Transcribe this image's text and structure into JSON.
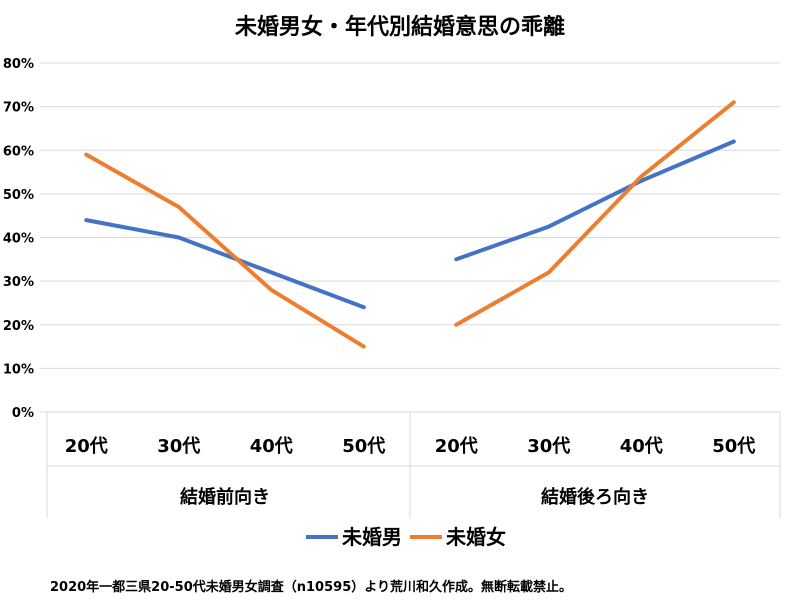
{
  "chart_data": {
    "type": "line",
    "title": "未婚男女・年代別結婚意思の乖離",
    "ylim": [
      0,
      0.8
    ],
    "yticks": [
      "0%",
      "10%",
      "20%",
      "30%",
      "40%",
      "50%",
      "60%",
      "70%",
      "80%"
    ],
    "grid": true,
    "legend_position": "bottom",
    "groups": [
      {
        "label": "結婚前向き",
        "categories": [
          "20代",
          "30代",
          "40代",
          "50代"
        ]
      },
      {
        "label": "結婚後ろ向き",
        "categories": [
          "20代",
          "30代",
          "40代",
          "50代"
        ]
      }
    ],
    "series": [
      {
        "name": "未婚男",
        "color": "#4472C4",
        "values": [
          [
            0.44,
            0.4,
            0.32,
            0.24
          ],
          [
            0.35,
            0.425,
            0.53,
            0.62
          ]
        ]
      },
      {
        "name": "未婚女",
        "color": "#ED7D31",
        "values": [
          [
            0.59,
            0.47,
            0.28,
            0.15
          ],
          [
            0.2,
            0.32,
            0.54,
            0.71
          ]
        ]
      }
    ]
  },
  "footer": {
    "source": "2020年一都三県20-50代未婚男女調査（n10595）より荒川和久作成。無断転載禁止。"
  }
}
